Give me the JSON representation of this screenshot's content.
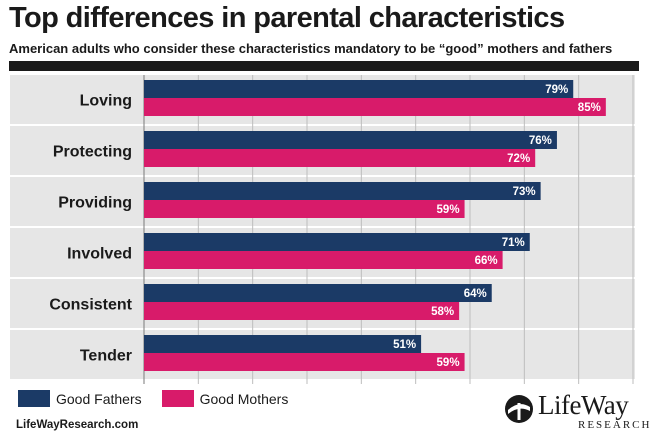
{
  "header": {
    "title": "Top differences in parental characteristics",
    "subtitle": "American adults who consider these characteristics mandatory to be “good” mothers and fathers"
  },
  "colors": {
    "fathers": "#1b3a66",
    "mothers": "#d81b6a",
    "row_band": "#e6e6e6",
    "gridline": "#bdbdbd"
  },
  "chart_data": {
    "type": "bar",
    "orientation": "horizontal",
    "categories": [
      "Loving",
      "Protecting",
      "Providing",
      "Involved",
      "Consistent",
      "Tender"
    ],
    "series": [
      {
        "name": "Good Fathers",
        "values": [
          79,
          76,
          73,
          71,
          64,
          51
        ]
      },
      {
        "name": "Good Mothers",
        "values": [
          85,
          72,
          59,
          66,
          58,
          59
        ]
      }
    ],
    "value_suffix": "%",
    "xlim": [
      0,
      90
    ],
    "grid": true,
    "legend_position": "bottom-left"
  },
  "legend": {
    "fathers_label": "Good Fathers",
    "mothers_label": "Good Mothers"
  },
  "footer": {
    "url": "LifeWayResearch.com",
    "logo_name": "LifeWay",
    "logo_sub": "RESEARCH"
  }
}
